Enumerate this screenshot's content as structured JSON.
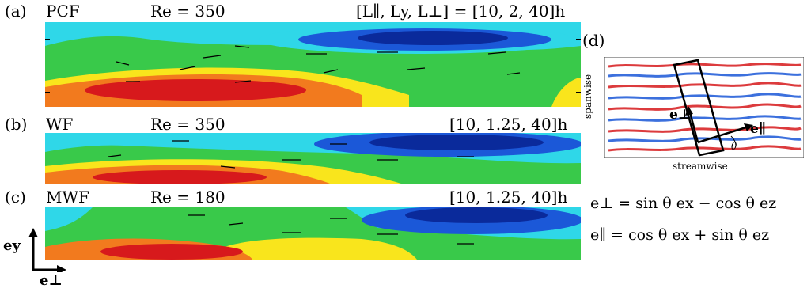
{
  "figure": {
    "panels": [
      {
        "tag": "(a)",
        "name": "PCF",
        "re": "Re = 350",
        "dims_pre": "[L",
        "dims_full": "[L∥, Ly, L⊥] = [10, 2, 40]h"
      },
      {
        "tag": "(b)",
        "name": "WF",
        "re": "Re = 350",
        "dims_full": "[10, 1.25, 40]h"
      },
      {
        "tag": "(c)",
        "name": "MWF",
        "re": "Re = 180",
        "dims_full": "[10, 1.25, 40]h"
      }
    ],
    "inset": {
      "tag": "(d)",
      "ylabel": "spanwise",
      "xlabel": "streamwise",
      "e_perp": "e⊥",
      "e_par": "e∥",
      "theta": "θ"
    },
    "equations": {
      "perp": "e⊥ = sin θ ex − cos θ ez",
      "par": "e∥ = cos θ ex + sin θ ez"
    },
    "axes": {
      "y": "ey",
      "perp": "e⊥"
    },
    "colors": {
      "red": "#d7191c",
      "orange": "#f27a1e",
      "yellow": "#f9e51c",
      "green": "#39c94a",
      "cyan": "#2fd7e8",
      "blue": "#1b58d8",
      "navy": "#0a2a9b"
    }
  }
}
